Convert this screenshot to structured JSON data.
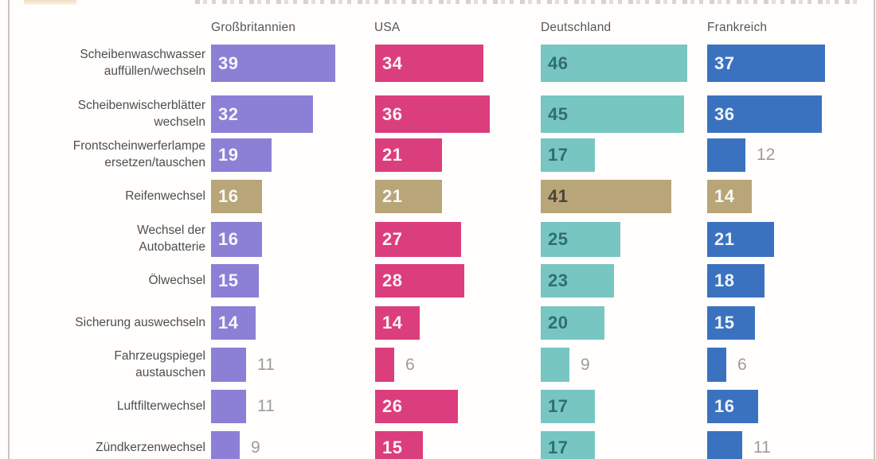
{
  "colors": {
    "grossbritannien": "#8B80D6",
    "usa": "#DB3E7C",
    "deutschland": "#77C6C2",
    "frankreich": "#3B72C0",
    "highlight": "#B8A679",
    "header_text": "#565656",
    "category_text": "#4E4E4E",
    "value_inside_light": "#FFFFFF",
    "value_dark_teal": "#2F6E74",
    "value_on_highlight_dark": "#4B4437",
    "value_outside": "#9C9C9C"
  },
  "chart_data": {
    "type": "bar",
    "orientation": "horizontal",
    "categories": [
      "Scheibenwaschwasser\nauffüllen/wechseln",
      "Scheibenwischerblätter\nwechseln",
      "Frontscheinwerferlampe\nersetzen/tauschen",
      "Reifenwechsel",
      "Wechsel der\nAutobatterie",
      "Ölwechsel",
      "Sicherung auswechseln",
      "Fahrzeugspiegel\naustauschen",
      "Luftfilterwechsel",
      "Zündkerzenwechsel"
    ],
    "series": [
      {
        "name": "Großbritannien",
        "color": "#8B80D6",
        "values": [
          39,
          32,
          19,
          16,
          16,
          15,
          14,
          11,
          11,
          9
        ]
      },
      {
        "name": "USA",
        "color": "#DB3E7C",
        "values": [
          34,
          36,
          21,
          21,
          27,
          28,
          14,
          6,
          26,
          15
        ]
      },
      {
        "name": "Deutschland",
        "color": "#77C6C2",
        "values": [
          46,
          45,
          17,
          41,
          25,
          23,
          20,
          9,
          17,
          17
        ]
      },
      {
        "name": "Frankreich",
        "color": "#3B72C0",
        "values": [
          37,
          36,
          12,
          14,
          21,
          18,
          15,
          6,
          16,
          11
        ]
      }
    ],
    "highlighted_category": "Reifenwechsel",
    "highlight_color": "#B8A679",
    "xlim": [
      0,
      50
    ],
    "grid": false,
    "legend_position": "column headers above each bar group",
    "value_labels": "shown on each bar; printed outside the bar in gray when value <= 12; Deutschland column uses dark text inside bars, other columns white"
  }
}
